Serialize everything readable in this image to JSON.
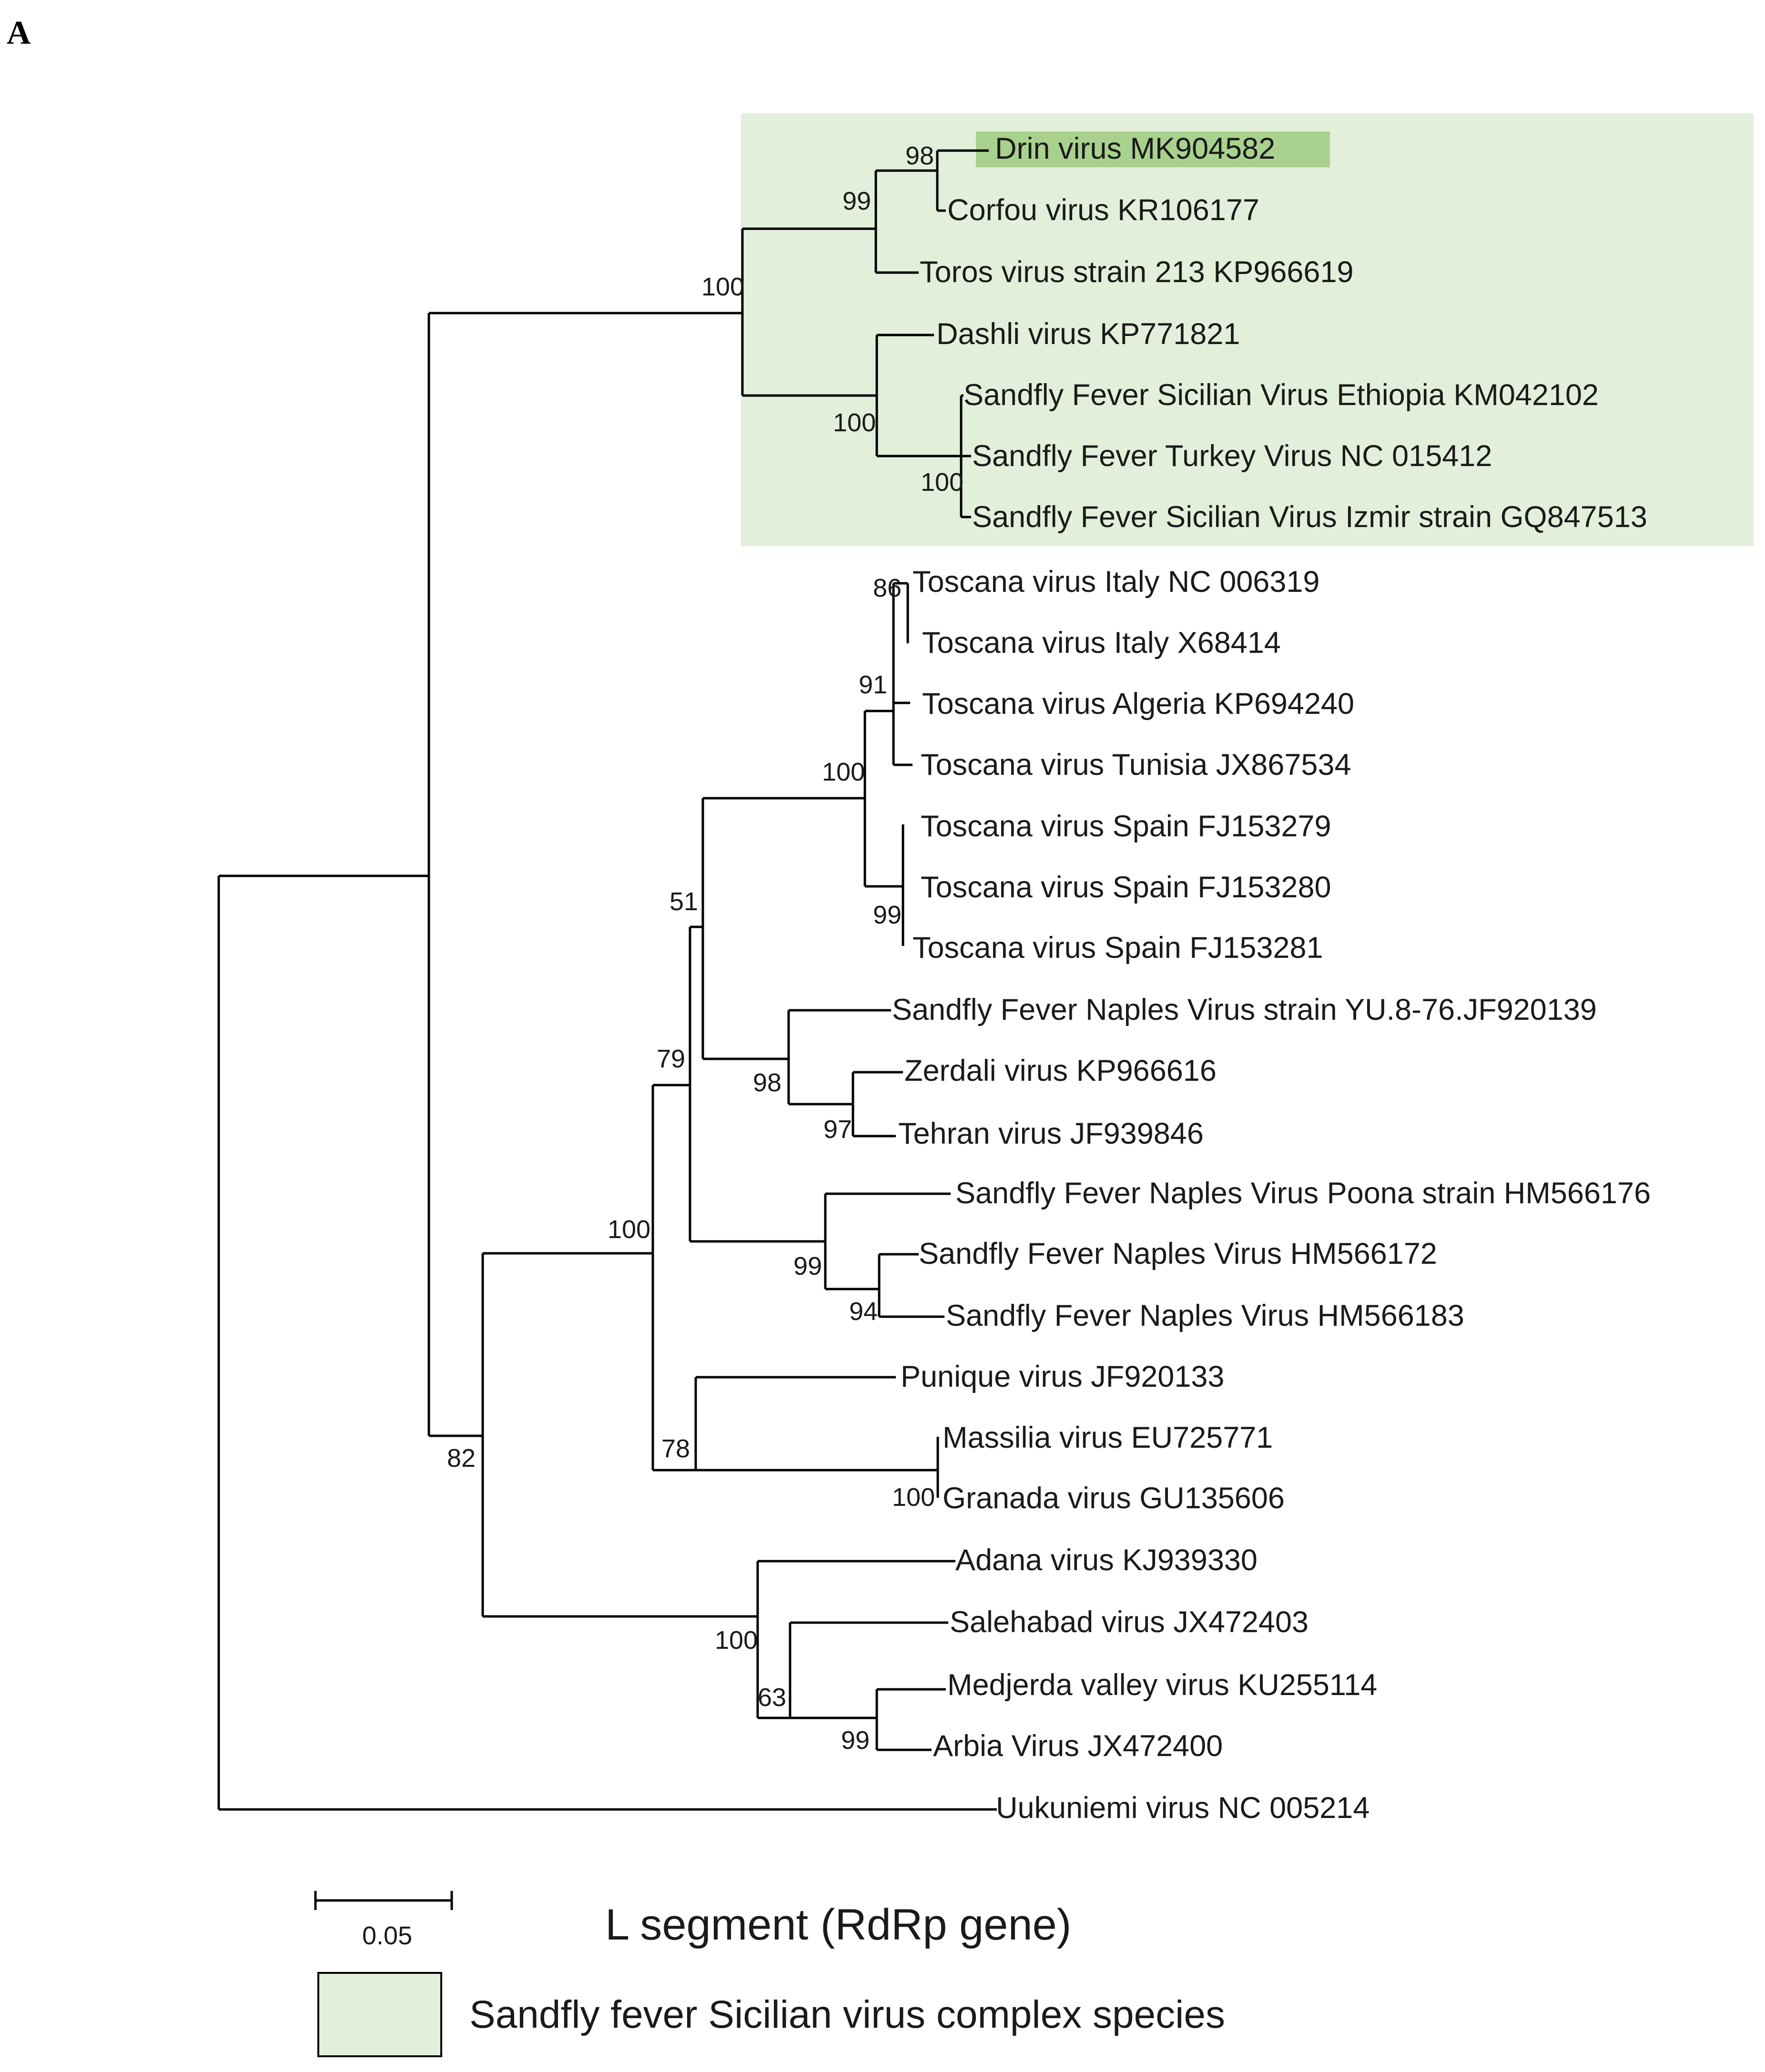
{
  "panel_label": "A",
  "highlight_color": "#e2efda",
  "focus_color": "#a9d18e",
  "taxa": [
    {
      "id": "t1",
      "label": "Drin virus MK904582",
      "focus": true
    },
    {
      "id": "t2",
      "label": "Corfou virus KR106177"
    },
    {
      "id": "t3",
      "label": "Toros virus strain 213 KP966619"
    },
    {
      "id": "t4",
      "label": "Dashli virus KP771821"
    },
    {
      "id": "t5",
      "label": "Sandfly Fever Sicilian Virus Ethiopia KM042102"
    },
    {
      "id": "t6",
      "label": "Sandfly Fever Turkey Virus NC 015412"
    },
    {
      "id": "t7",
      "label": "Sandfly Fever Sicilian Virus Izmir strain GQ847513"
    },
    {
      "id": "t8",
      "label": "Toscana virus Italy NC 006319"
    },
    {
      "id": "t9",
      "label": "Toscana virus Italy X68414"
    },
    {
      "id": "t10",
      "label": "Toscana virus Algeria KP694240"
    },
    {
      "id": "t11",
      "label": "Toscana virus Tunisia JX867534"
    },
    {
      "id": "t12",
      "label": "Toscana virus Spain FJ153279"
    },
    {
      "id": "t13",
      "label": "Toscana virus Spain FJ153280"
    },
    {
      "id": "t14",
      "label": "Toscana virus Spain FJ153281"
    },
    {
      "id": "t15",
      "label": "Sandfly Fever Naples Virus strain YU.8-76.JF920139"
    },
    {
      "id": "t16",
      "label": "Zerdali virus KP966616"
    },
    {
      "id": "t17",
      "label": "Tehran virus JF939846"
    },
    {
      "id": "t18",
      "label": "Sandfly Fever Naples Virus Poona strain HM566176"
    },
    {
      "id": "t19",
      "label": "Sandfly Fever Naples Virus HM566172"
    },
    {
      "id": "t20",
      "label": "Sandfly Fever Naples Virus HM566183"
    },
    {
      "id": "t21",
      "label": "Punique virus JF920133"
    },
    {
      "id": "t22",
      "label": "Massilia virus EU725771"
    },
    {
      "id": "t23",
      "label": "Granada virus GU135606"
    },
    {
      "id": "t24",
      "label": "Adana virus KJ939330"
    },
    {
      "id": "t25",
      "label": "Salehabad virus JX472403"
    },
    {
      "id": "t26",
      "label": "Medjerda valley virus KU255114"
    },
    {
      "id": "t27",
      "label": "Arbia Virus JX472400"
    },
    {
      "id": "t28",
      "label": "Uukuniemi virus NC 005214"
    }
  ],
  "bootstrap": [
    {
      "node": "drin-corfou",
      "value": "98"
    },
    {
      "node": "drin-corfou-toros",
      "value": "99"
    },
    {
      "node": "sicilian-complex",
      "value": "100"
    },
    {
      "node": "dashli-sfsv",
      "value": "100"
    },
    {
      "node": "sfsv-turkey",
      "value": "100"
    },
    {
      "node": "toscana-italy",
      "value": "86"
    },
    {
      "node": "toscana-north-africa",
      "value": "91"
    },
    {
      "node": "toscana-all",
      "value": "100"
    },
    {
      "node": "toscana-spain",
      "value": "99"
    },
    {
      "node": "toscana-naples",
      "value": "51"
    },
    {
      "node": "zerdali-tehran",
      "value": "97"
    },
    {
      "node": "naples-zerdali-tehran",
      "value": "98"
    },
    {
      "node": "naples-clade",
      "value": "79"
    },
    {
      "node": "naples-hm",
      "value": "94"
    },
    {
      "node": "naples-poona",
      "value": "99"
    },
    {
      "node": "naples-massilia",
      "value": "100"
    },
    {
      "node": "massilia-granada",
      "value": "100"
    },
    {
      "node": "punique-massilia",
      "value": "78"
    },
    {
      "node": "naples-salehabad",
      "value": "82"
    },
    {
      "node": "salehabad-clade",
      "value": "100"
    },
    {
      "node": "salehabad-subclade",
      "value": "63"
    },
    {
      "node": "medjerda-arbia",
      "value": "99"
    }
  ],
  "scale_bar": {
    "label": "0.05"
  },
  "caption": "L segment  (RdRp gene)",
  "legend": {
    "label": "Sandfly fever Sicilian virus complex species"
  }
}
